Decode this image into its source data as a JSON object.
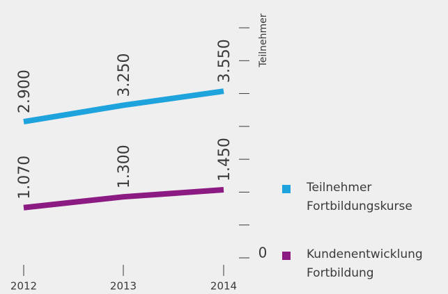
{
  "chart_data": {
    "type": "line",
    "y_axis_label": "Teilnehmer",
    "categories": [
      "2012",
      "2013",
      "2014"
    ],
    "series": [
      {
        "name": "Teilnehmer Fortbildungskurse",
        "color": "#1fa3dd",
        "values": [
          2900,
          3250,
          3550
        ],
        "value_labels": [
          "2.900",
          "3.250",
          "3.550"
        ]
      },
      {
        "name": "Kundenentwicklung Fortbildung",
        "color": "#8b1a82",
        "values": [
          1070,
          1300,
          1450
        ],
        "value_labels": [
          "1.070",
          "1.300",
          "1.450"
        ]
      }
    ],
    "ylim": [
      0,
      4900
    ],
    "yticks": [
      0,
      700,
      1400,
      2100,
      2800,
      3500,
      4200,
      4900
    ],
    "legend": "right"
  }
}
